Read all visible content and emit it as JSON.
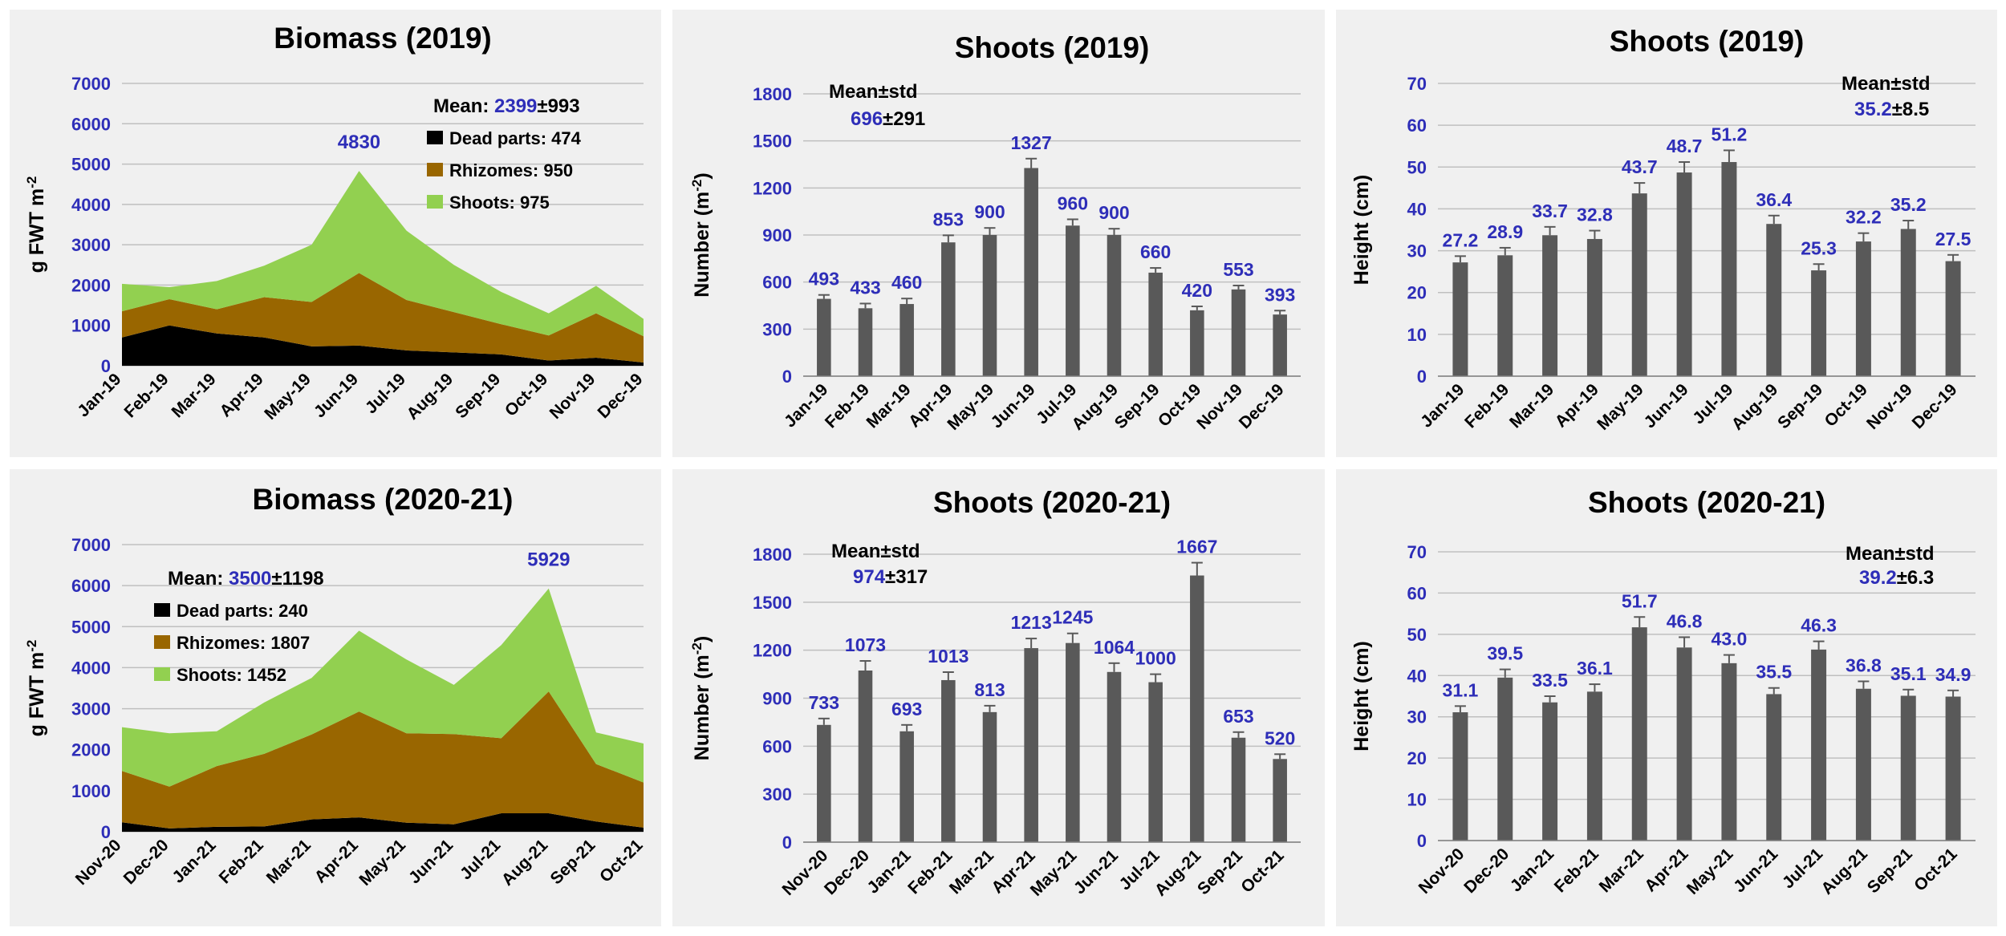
{
  "colors": {
    "dead": "#000000",
    "rhizomes": "#996600",
    "shoots_area": "#92d050",
    "bar": "#595959",
    "value_blue": "#2e2eb8",
    "axis_text": "#000000",
    "grid": "#bfbfbf",
    "panel_bg": "#f0f0f0"
  },
  "chart_data": [
    {
      "type": "area",
      "title": "Biomass (2019)",
      "ylabel": "g FWT m",
      "ylabel_sup": "-2",
      "ylim": [
        0,
        7000
      ],
      "yticks": [
        "0",
        "1000",
        "2000",
        "3000",
        "4000",
        "5000",
        "6000",
        "7000"
      ],
      "categories": [
        "Jan-19",
        "Feb-19",
        "Mar-19",
        "Apr-19",
        "May-19",
        "Jun-19",
        "Jul-19",
        "Aug-19",
        "Sep-19",
        "Oct-19",
        "Nov-19",
        "Dec-19"
      ],
      "series": [
        {
          "name": "Dead parts",
          "values": [
            700,
            1000,
            800,
            700,
            480,
            500,
            380,
            330,
            280,
            130,
            200,
            80
          ]
        },
        {
          "name": "Rhizomes",
          "values": [
            650,
            650,
            600,
            1000,
            1100,
            1800,
            1250,
            1000,
            750,
            620,
            1100,
            650
          ]
        },
        {
          "name": "Shoots",
          "values": [
            680,
            300,
            700,
            780,
            1420,
            2530,
            1720,
            1170,
            800,
            550,
            680,
            430
          ]
        }
      ],
      "peak_label": {
        "text": "4830",
        "index": 5
      },
      "legend": {
        "mean_label": "Mean:",
        "mean_value": "2399",
        "mean_std": "±993",
        "items": [
          {
            "label": "Dead parts: 474"
          },
          {
            "label": "Rhizomes: 950"
          },
          {
            "label": "Shoots: 975"
          }
        ]
      }
    },
    {
      "type": "bar",
      "title": "Shoots (2019)",
      "ylabel": "Number (m",
      "ylabel_sup": "-2",
      "ylabel_end": ")",
      "ylim": [
        0,
        1800
      ],
      "yticks": [
        "0",
        "300",
        "600",
        "900",
        "1200",
        "1500",
        "1800"
      ],
      "categories": [
        "Jan-19",
        "Feb-19",
        "Mar-19",
        "Apr-19",
        "May-19",
        "Jun-19",
        "Jul-19",
        "Aug-19",
        "Sep-19",
        "Oct-19",
        "Nov-19",
        "Dec-19"
      ],
      "values": [
        493,
        433,
        460,
        853,
        900,
        1327,
        960,
        900,
        660,
        420,
        553,
        393
      ],
      "value_labels": [
        "493",
        "433",
        "460",
        "853",
        "900",
        "1327",
        "960",
        "900",
        "660",
        "420",
        "553",
        "393"
      ],
      "errors": [
        25,
        30,
        35,
        45,
        45,
        60,
        40,
        40,
        30,
        25,
        25,
        25
      ],
      "mean_title": "Mean±std",
      "mean_value": "696",
      "mean_std": "±291"
    },
    {
      "type": "bar",
      "title": "Shoots  (2019)",
      "ylabel": "Height (cm)",
      "ylim": [
        0,
        70
      ],
      "yticks": [
        "0",
        "10",
        "20",
        "30",
        "40",
        "50",
        "60",
        "70"
      ],
      "categories": [
        "Jan-19",
        "Feb-19",
        "Mar-19",
        "Apr-19",
        "May-19",
        "Jun-19",
        "Jul-19",
        "Aug-19",
        "Sep-19",
        "Oct-19",
        "Nov-19",
        "Dec-19"
      ],
      "values": [
        27.2,
        28.9,
        33.7,
        32.8,
        43.7,
        48.7,
        51.2,
        36.4,
        25.3,
        32.2,
        35.2,
        27.5
      ],
      "value_labels": [
        "27.2",
        "28.9",
        "33.7",
        "32.8",
        "43.7",
        "48.7",
        "51.2",
        "36.4",
        "25.3",
        "32.2",
        "35.2",
        "27.5"
      ],
      "errors": [
        1.5,
        1.8,
        2,
        2,
        2.5,
        2.5,
        2.8,
        2,
        1.5,
        2,
        2,
        1.5
      ],
      "mean_title": "Mean±std",
      "mean_value": "35.2",
      "mean_std": "±8.5"
    },
    {
      "type": "area",
      "title": "Biomass (2020-21)",
      "ylabel": "g FWT m",
      "ylabel_sup": "-2",
      "ylim": [
        0,
        7000
      ],
      "yticks": [
        "0",
        "1000",
        "2000",
        "3000",
        "4000",
        "5000",
        "6000",
        "7000"
      ],
      "categories": [
        "Nov-20",
        "Dec-20",
        "Jan-21",
        "Feb-21",
        "Mar-21",
        "Apr-21",
        "May-21",
        "Jun-21",
        "Jul-21",
        "Aug-21",
        "Sep-21",
        "Oct-21"
      ],
      "series": [
        {
          "name": "Dead parts",
          "values": [
            230,
            80,
            120,
            130,
            300,
            350,
            220,
            180,
            450,
            450,
            250,
            100
          ]
        },
        {
          "name": "Rhizomes",
          "values": [
            1250,
            1020,
            1480,
            1770,
            2070,
            2580,
            2180,
            2200,
            1830,
            2970,
            1400,
            1100
          ]
        },
        {
          "name": "Shoots",
          "values": [
            1070,
            1300,
            850,
            1250,
            1380,
            1970,
            1800,
            1200,
            2270,
            2510,
            770,
            950
          ]
        }
      ],
      "peak_label": {
        "text": "5929",
        "index": 9
      },
      "legend": {
        "mean_label": "Mean:",
        "mean_value": "3500",
        "mean_std": "±1198",
        "items": [
          {
            "label": "Dead parts: 240"
          },
          {
            "label": "Rhizomes:  1807"
          },
          {
            "label": "Shoots: 1452"
          }
        ]
      }
    },
    {
      "type": "bar",
      "title": "Shoots (2020-21)",
      "ylabel": "Number (m",
      "ylabel_sup": "-2",
      "ylabel_end": ")",
      "ylim": [
        0,
        1800
      ],
      "yticks": [
        "0",
        "300",
        "600",
        "900",
        "1200",
        "1500",
        "1800"
      ],
      "categories": [
        "Nov-20",
        "Dec-20",
        "Jan-21",
        "Feb-21",
        "Mar-21",
        "Apr-21",
        "May-21",
        "Jun-21",
        "Jul-21",
        "Aug-21",
        "Sep-21",
        "Oct-21"
      ],
      "values": [
        733,
        1073,
        693,
        1013,
        813,
        1213,
        1245,
        1064,
        1000,
        1667,
        653,
        520
      ],
      "value_labels": [
        "733",
        "1073",
        "693",
        "1013",
        "813",
        "1213",
        "1245",
        "1064",
        "1000",
        "1667",
        "653",
        "520"
      ],
      "errors": [
        40,
        60,
        40,
        50,
        40,
        60,
        60,
        55,
        50,
        80,
        35,
        30
      ],
      "mean_title": "Mean±std",
      "mean_value": "974",
      "mean_std": "±317"
    },
    {
      "type": "bar",
      "title": "Shoots  (2020-21)",
      "ylabel": "Height (cm)",
      "ylim": [
        0,
        70
      ],
      "yticks": [
        "0",
        "10",
        "20",
        "30",
        "40",
        "50",
        "60",
        "70"
      ],
      "categories": [
        "Nov-20",
        "Dec-20",
        "Jan-21",
        "Feb-21",
        "Mar-21",
        "Apr-21",
        "May-21",
        "Jun-21",
        "Jul-21",
        "Aug-21",
        "Sep-21",
        "Oct-21"
      ],
      "values": [
        31.1,
        39.5,
        33.5,
        36.1,
        51.7,
        46.8,
        43.0,
        35.5,
        46.3,
        36.8,
        35.1,
        34.9
      ],
      "value_labels": [
        "31.1",
        "39.5",
        "33.5",
        "36.1",
        "51.7",
        "46.8",
        "43.0",
        "35.5",
        "46.3",
        "36.8",
        "35.1",
        "34.9"
      ],
      "errors": [
        1.5,
        2,
        1.5,
        1.8,
        2.5,
        2.5,
        2,
        1.5,
        2,
        1.8,
        1.5,
        1.5
      ],
      "mean_title": "Mean±std",
      "mean_value": "39.2",
      "mean_std": "±6.3"
    }
  ]
}
